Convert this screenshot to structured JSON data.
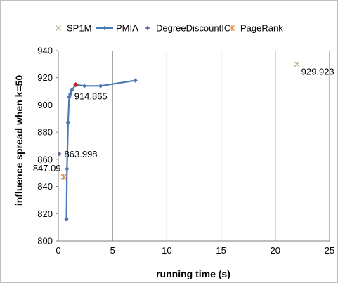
{
  "chart_data": {
    "type": "scatter",
    "title": "",
    "xlabel": "running time (s)",
    "ylabel": "influence spread when k=50",
    "xlim": [
      0,
      25
    ],
    "ylim": [
      800,
      940
    ],
    "x_ticks": [
      "0",
      "5",
      "10",
      "15",
      "20",
      "25"
    ],
    "y_ticks": [
      "800",
      "820",
      "840",
      "860",
      "880",
      "900",
      "920",
      "940"
    ],
    "grid": "vertical",
    "legend_position": "top",
    "series": [
      {
        "name": "SP1M",
        "marker": "x",
        "color": "#a6a97c",
        "points": [
          {
            "x": 22.0,
            "y": 929.923,
            "label": "929.923"
          }
        ]
      },
      {
        "name": "PMIA",
        "marker": "diamond",
        "line": true,
        "color": "#4a7ab5",
        "points": [
          {
            "x": 0.75,
            "y": 816
          },
          {
            "x": 0.8,
            "y": 853
          },
          {
            "x": 0.9,
            "y": 887
          },
          {
            "x": 1.0,
            "y": 906
          },
          {
            "x": 1.1,
            "y": 908
          },
          {
            "x": 1.25,
            "y": 911
          },
          {
            "x": 1.6,
            "y": 914.865,
            "label": "914.865",
            "highlight": "#cc2222"
          },
          {
            "x": 2.4,
            "y": 914
          },
          {
            "x": 3.9,
            "y": 914
          },
          {
            "x": 7.1,
            "y": 918
          }
        ]
      },
      {
        "name": "DegreeDiscountIC",
        "marker": "diamond",
        "color": "#7f5fa0",
        "points": [
          {
            "x": 0.1,
            "y": 863.998,
            "label": "863.998"
          }
        ]
      },
      {
        "name": "PageRank",
        "marker": "asterisk",
        "color": "#e8833a",
        "points": [
          {
            "x": 0.5,
            "y": 847.09,
            "label": "847.09"
          }
        ]
      }
    ]
  }
}
